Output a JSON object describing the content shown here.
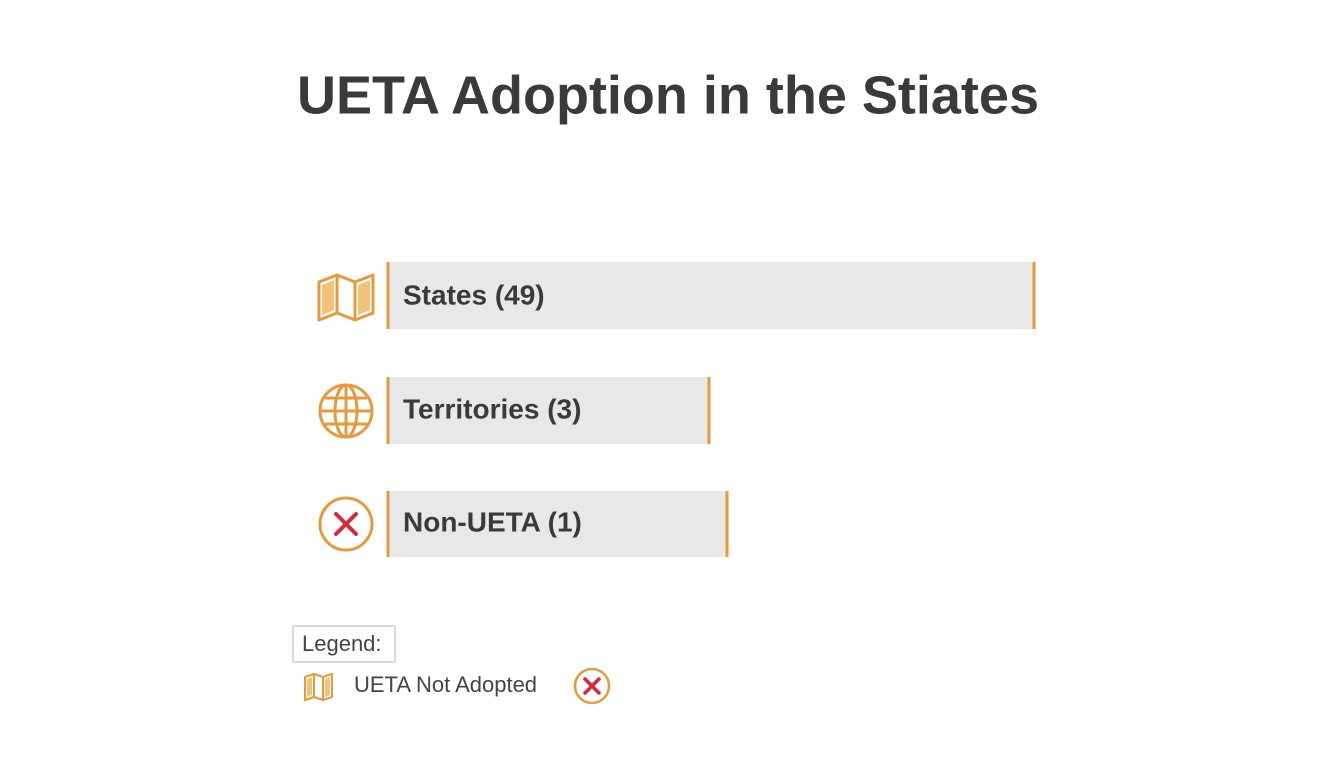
{
  "header": {
    "title": "UETA Adoption in the Stiates"
  },
  "rows": [
    {
      "label": "States (49)"
    },
    {
      "label": "Territories (3)"
    },
    {
      "label": "Non-UETA (1)"
    }
  ],
  "legend": {
    "title": "Legend:",
    "items": [
      {
        "label": "UETA Not Adopted"
      }
    ]
  }
}
